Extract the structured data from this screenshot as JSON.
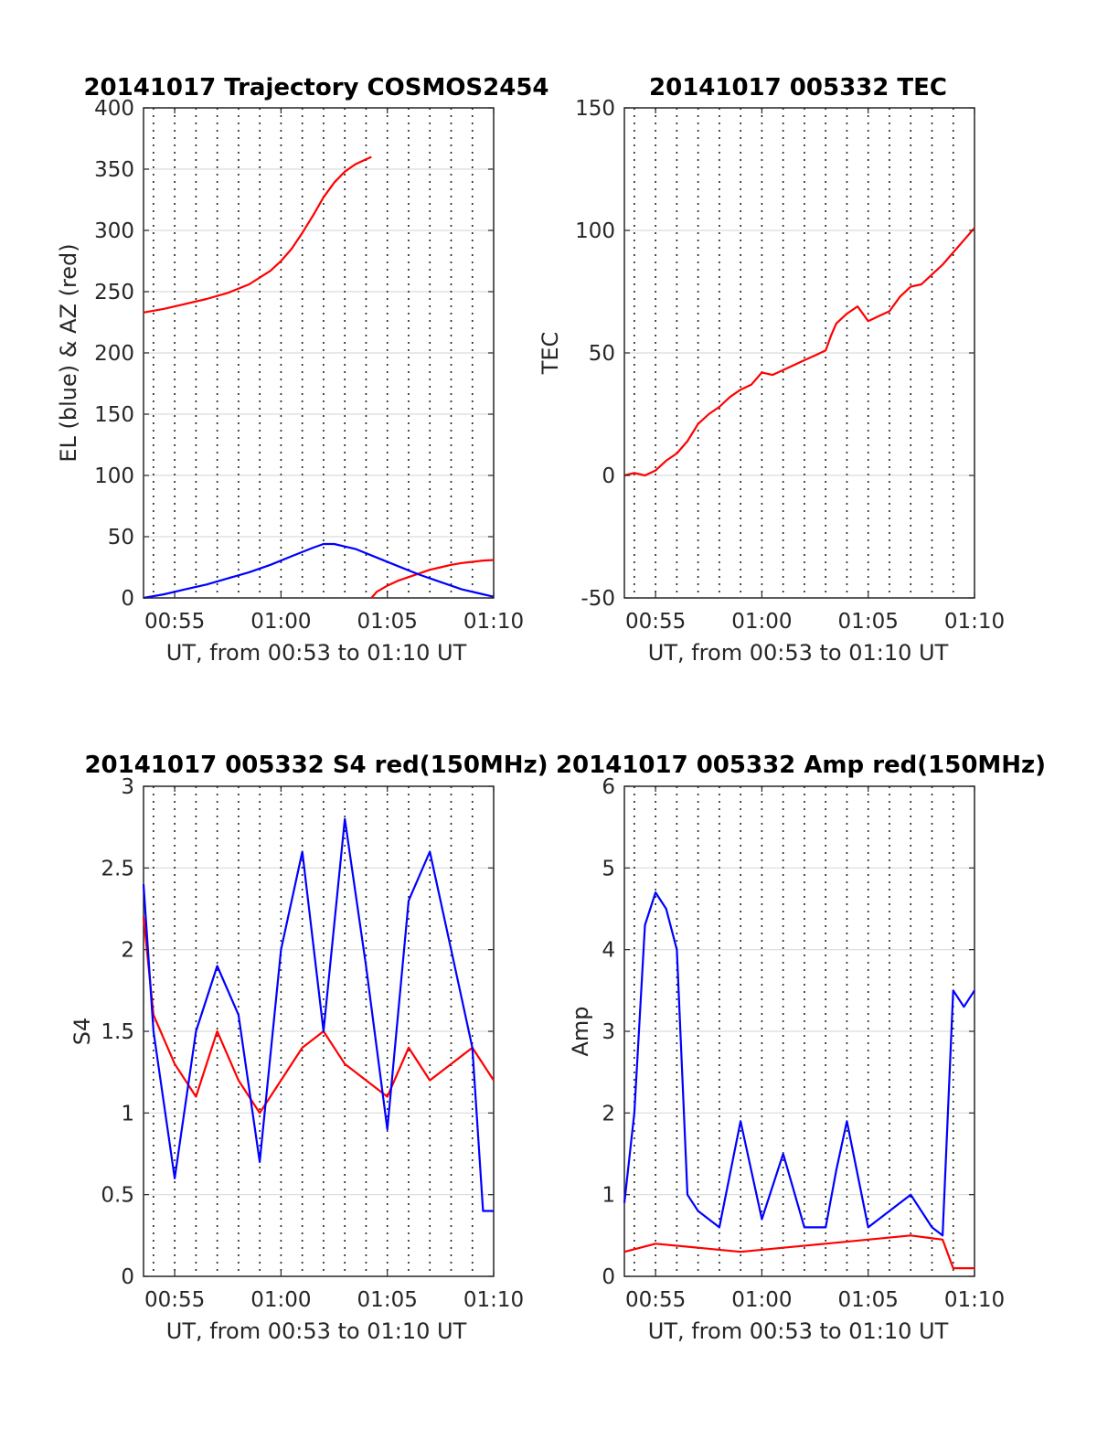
{
  "chart_data": [
    {
      "id": "trajectory",
      "type": "line",
      "title": "20141017 Trajectory COSMOS2454",
      "xlabel": "UT, from 00:53 to 01:10 UT",
      "ylabel": "EL (blue) & AZ (red)",
      "xlim": [
        "00:53:32",
        "01:10:00"
      ],
      "ylim": [
        0,
        400
      ],
      "yticks": [
        0,
        50,
        100,
        150,
        200,
        250,
        300,
        350,
        400
      ],
      "xticks": [
        "00:55",
        "01:00",
        "01:05",
        "01:10"
      ],
      "grid": true,
      "series": [
        {
          "color": "#ff0000",
          "x": [
            "00:53:32",
            "00:54:30",
            "00:55:30",
            "00:56:30",
            "00:57:30",
            "00:58:30",
            "00:59:30",
            "01:00:00",
            "01:00:30",
            "01:01:00",
            "01:01:30",
            "01:02:00",
            "01:02:30",
            "01:03:00",
            "01:03:30",
            "01:04:00",
            "01:04:15"
          ],
          "values": [
            233,
            236,
            240,
            244,
            249,
            256,
            267,
            275,
            285,
            298,
            312,
            327,
            339,
            348,
            354,
            358,
            360
          ]
        },
        {
          "color": "#ff0000",
          "x": [
            "01:04:15",
            "01:04:30",
            "01:05:00",
            "01:05:30",
            "01:06:00",
            "01:06:30",
            "01:07:00",
            "01:07:30",
            "01:08:00",
            "01:08:30",
            "01:09:00",
            "01:09:30",
            "01:10:00"
          ],
          "values": [
            0,
            5,
            10,
            14,
            17,
            20,
            23,
            25,
            27,
            28.5,
            29.5,
            30.5,
            31
          ]
        },
        {
          "color": "#0000ff",
          "x": [
            "00:53:32",
            "00:54:30",
            "00:55:30",
            "00:56:30",
            "00:57:30",
            "00:58:30",
            "00:59:30",
            "01:00:30",
            "01:01:30",
            "01:02:00",
            "01:02:30",
            "01:03:30",
            "01:04:30",
            "01:05:30",
            "01:06:30",
            "01:07:30",
            "01:08:30",
            "01:09:30",
            "01:10:00"
          ],
          "values": [
            0,
            3,
            7,
            11,
            16,
            21,
            27,
            34,
            41,
            44,
            44,
            40,
            33,
            26,
            19,
            13,
            7,
            3,
            1
          ]
        }
      ]
    },
    {
      "id": "tec",
      "type": "line",
      "title": "20141017 005332 TEC",
      "xlabel": "UT, from 00:53 to 01:10 UT",
      "ylabel": "TEC",
      "xlim": [
        "00:53:32",
        "01:10:00"
      ],
      "ylim": [
        -50,
        150
      ],
      "yticks": [
        -50,
        0,
        50,
        100,
        150
      ],
      "xticks": [
        "00:55",
        "01:00",
        "01:05",
        "01:10"
      ],
      "grid": true,
      "series": [
        {
          "color": "#ff0000",
          "x": [
            "00:53:32",
            "00:54:00",
            "00:54:30",
            "00:55:00",
            "00:55:30",
            "00:56:00",
            "00:56:30",
            "00:57:00",
            "00:57:30",
            "00:58:00",
            "00:58:30",
            "00:59:00",
            "00:59:30",
            "01:00:00",
            "01:00:30",
            "01:01:00",
            "01:01:30",
            "01:02:00",
            "01:02:30",
            "01:03:00",
            "01:03:15",
            "01:03:30",
            "01:04:00",
            "01:04:30",
            "01:05:00",
            "01:05:30",
            "01:06:00",
            "01:06:30",
            "01:07:00",
            "01:07:30",
            "01:08:00",
            "01:08:30",
            "01:09:00",
            "01:09:30",
            "01:10:00"
          ],
          "values": [
            0,
            1,
            0,
            2,
            6,
            9,
            14,
            21,
            25,
            28,
            32,
            35,
            37,
            42,
            41,
            43,
            45,
            47,
            49,
            51,
            57,
            62,
            66,
            69,
            63,
            65,
            67,
            73,
            77,
            78,
            82,
            86,
            91,
            96,
            101
          ]
        }
      ]
    },
    {
      "id": "s4",
      "type": "line",
      "title": "20141017 005332 S4 red(150MHz)",
      "xlabel": "UT, from 00:53 to 01:10 UT",
      "ylabel": "S4",
      "xlim": [
        "00:53:32",
        "01:10:00"
      ],
      "ylim": [
        0,
        3
      ],
      "yticks": [
        0,
        0.5,
        1,
        1.5,
        2,
        2.5,
        3
      ],
      "xticks": [
        "00:55",
        "01:00",
        "01:05",
        "01:10"
      ],
      "grid": true,
      "series": [
        {
          "color": "#ff0000",
          "x": [
            "00:53:32",
            "00:54:00",
            "00:55:00",
            "00:56:00",
            "00:57:00",
            "00:58:00",
            "00:59:00",
            "01:00:00",
            "01:01:00",
            "01:02:00",
            "01:03:00",
            "01:04:00",
            "01:05:00",
            "01:06:00",
            "01:07:00",
            "01:08:00",
            "01:09:00",
            "01:10:00"
          ],
          "values": [
            2.2,
            1.6,
            1.3,
            1.1,
            1.5,
            1.2,
            1.0,
            1.2,
            1.4,
            1.5,
            1.3,
            1.2,
            1.1,
            1.4,
            1.2,
            1.3,
            1.4,
            1.2
          ]
        },
        {
          "color": "#0000ff",
          "x": [
            "00:53:32",
            "00:54:00",
            "00:55:00",
            "00:56:00",
            "00:57:00",
            "00:58:00",
            "00:59:00",
            "01:00:00",
            "01:01:00",
            "01:02:00",
            "01:03:00",
            "01:04:00",
            "01:05:00",
            "01:06:00",
            "01:07:00",
            "01:08:00",
            "01:09:00",
            "01:09:30",
            "01:10:00"
          ],
          "values": [
            2.4,
            1.5,
            0.6,
            1.5,
            1.9,
            1.6,
            0.7,
            2.0,
            2.6,
            1.5,
            2.8,
            1.9,
            0.9,
            2.3,
            2.6,
            2.0,
            1.4,
            0.4,
            0.4
          ]
        }
      ]
    },
    {
      "id": "amp",
      "type": "line",
      "title": "20141017 005332 Amp red(150MHz)",
      "xlabel": "UT, from 00:53 to 01:10 UT",
      "ylabel": "Amp",
      "xlim": [
        "00:53:32",
        "01:10:00"
      ],
      "ylim": [
        0,
        6
      ],
      "yticks": [
        0,
        1,
        2,
        3,
        4,
        5,
        6
      ],
      "xticks": [
        "00:55",
        "01:00",
        "01:05",
        "01:10"
      ],
      "grid": true,
      "series": [
        {
          "color": "#ff0000",
          "x": [
            "00:53:32",
            "00:55:00",
            "00:57:00",
            "00:59:00",
            "01:01:00",
            "01:03:00",
            "01:05:00",
            "01:07:00",
            "01:08:30",
            "01:09:00",
            "01:10:00"
          ],
          "values": [
            0.3,
            0.4,
            0.35,
            0.3,
            0.35,
            0.4,
            0.45,
            0.5,
            0.45,
            0.1,
            0.1
          ]
        },
        {
          "color": "#0000ff",
          "x": [
            "00:53:32",
            "00:54:00",
            "00:54:30",
            "00:55:00",
            "00:55:30",
            "00:56:00",
            "00:56:30",
            "00:57:00",
            "00:58:00",
            "00:59:00",
            "01:00:00",
            "01:01:00",
            "01:02:00",
            "01:03:00",
            "01:03:30",
            "01:04:00",
            "01:05:00",
            "01:06:00",
            "01:07:00",
            "01:08:00",
            "01:08:30",
            "01:09:00",
            "01:09:30",
            "01:10:00"
          ],
          "values": [
            0.9,
            2.0,
            4.3,
            4.7,
            4.5,
            4.0,
            1.0,
            0.8,
            0.6,
            1.9,
            0.7,
            1.5,
            0.6,
            0.6,
            1.3,
            1.9,
            0.6,
            0.8,
            1.0,
            0.6,
            0.5,
            3.5,
            3.3,
            3.5
          ]
        }
      ]
    }
  ]
}
